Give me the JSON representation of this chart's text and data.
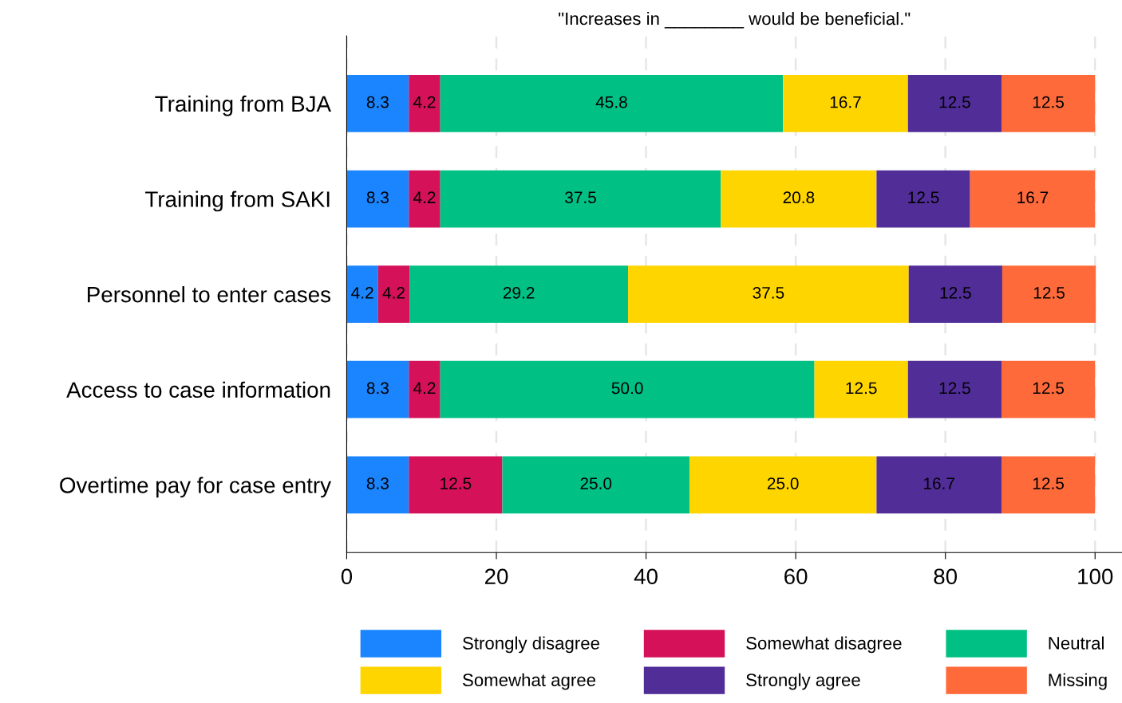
{
  "chart_data": {
    "type": "bar",
    "orientation": "horizontal",
    "stacked": true,
    "title": "\"Increases in ________ would be beneficial.\"",
    "categories": [
      "Training from BJA",
      "Training from SAKI",
      "Personnel to enter cases",
      "Access to case information",
      "Overtime pay for case entry"
    ],
    "series": [
      {
        "name": "Strongly disagree",
        "color": "#1a85ff",
        "values": [
          8.3,
          8.3,
          4.2,
          8.3,
          8.3
        ],
        "value_labels": [
          "8.3",
          "8.3",
          "4.2",
          "8.3",
          "8.3"
        ]
      },
      {
        "name": "Somewhat disagree",
        "color": "#d41159",
        "values": [
          4.2,
          4.2,
          4.2,
          4.2,
          12.5
        ],
        "value_labels": [
          "4.2",
          "4.2",
          "4.2",
          "4.2",
          "12.5"
        ]
      },
      {
        "name": "Neutral",
        "color": "#00c083",
        "values": [
          45.8,
          37.5,
          29.2,
          50.0,
          25.0
        ],
        "value_labels": [
          "45.8",
          "37.5",
          "29.2",
          "50.0",
          "25.0"
        ]
      },
      {
        "name": "Somewhat agree",
        "color": "#ffd500",
        "values": [
          16.7,
          20.8,
          37.5,
          12.5,
          25.0
        ],
        "value_labels": [
          "16.7",
          "20.8",
          "37.5",
          "12.5",
          "25.0"
        ]
      },
      {
        "name": "Strongly agree",
        "color": "#512d98",
        "values": [
          12.5,
          12.5,
          12.5,
          12.5,
          16.7
        ],
        "value_labels": [
          "12.5",
          "12.5",
          "12.5",
          "12.5",
          "16.7"
        ]
      },
      {
        "name": "Missing",
        "color": "#ff6a3a",
        "values": [
          12.5,
          16.7,
          12.5,
          12.5,
          12.5
        ],
        "value_labels": [
          "12.5",
          "16.7",
          "12.5",
          "12.5",
          "12.5"
        ]
      }
    ],
    "xlim": [
      0,
      103.6
    ],
    "xticks": [
      0,
      20,
      40,
      60,
      80,
      100
    ],
    "grid": "x",
    "legend": "bottom"
  }
}
